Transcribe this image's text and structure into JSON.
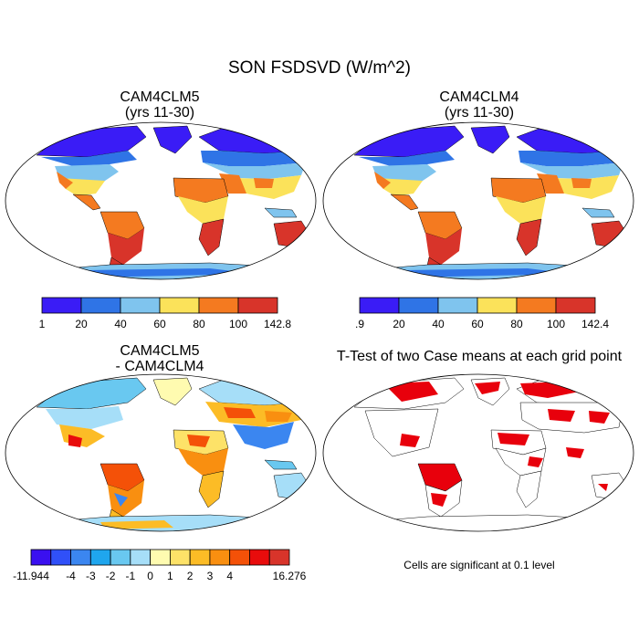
{
  "title": "SON FSDSVD (W/m^2)",
  "panels": [
    {
      "title_line1": "CAM4CLM5",
      "title_line2": "(yrs 11-30)"
    },
    {
      "title_line1": "CAM4CLM4",
      "title_line2": "(yrs 11-30)"
    },
    {
      "title_line1": "CAM4CLM5",
      "title_line2": "- CAM4CLM4"
    },
    {
      "title_line1": "T-Test of two Case means at each grid point",
      "title_line2": ""
    }
  ],
  "colorbar1": {
    "colors": [
      "#3a1cf6",
      "#2f74e6",
      "#7fc4ee",
      "#fbe25a",
      "#f47a20",
      "#d8342a"
    ],
    "labels": [
      "1",
      "20",
      "40",
      "60",
      "80",
      "100",
      "142.8"
    ]
  },
  "colorbar2": {
    "colors": [
      "#3a1cf6",
      "#2f74e6",
      "#7fc4ee",
      "#fbe25a",
      "#f47a20",
      "#d8342a"
    ],
    "labels": [
      ".9",
      "20",
      "40",
      "60",
      "80",
      "100",
      "142.4"
    ]
  },
  "colorbar3": {
    "colors": [
      "#3a10f0",
      "#3050f8",
      "#3b86f0",
      "#1fa6ee",
      "#69c8f0",
      "#a6def8",
      "#fffbb0",
      "#fde268",
      "#fcbc26",
      "#f98f10",
      "#f45108",
      "#e80c0c",
      "#d8342a"
    ],
    "labels": [
      "-11.944",
      "-4",
      "-3",
      "-2",
      "-1",
      "0",
      "1",
      "2",
      "3",
      "4",
      "16.276"
    ]
  },
  "significance_note": "Cells are significant at 0.1 level",
  "legend_colors": {
    "significant": "#e8000c",
    "land_outline": "#000000"
  }
}
